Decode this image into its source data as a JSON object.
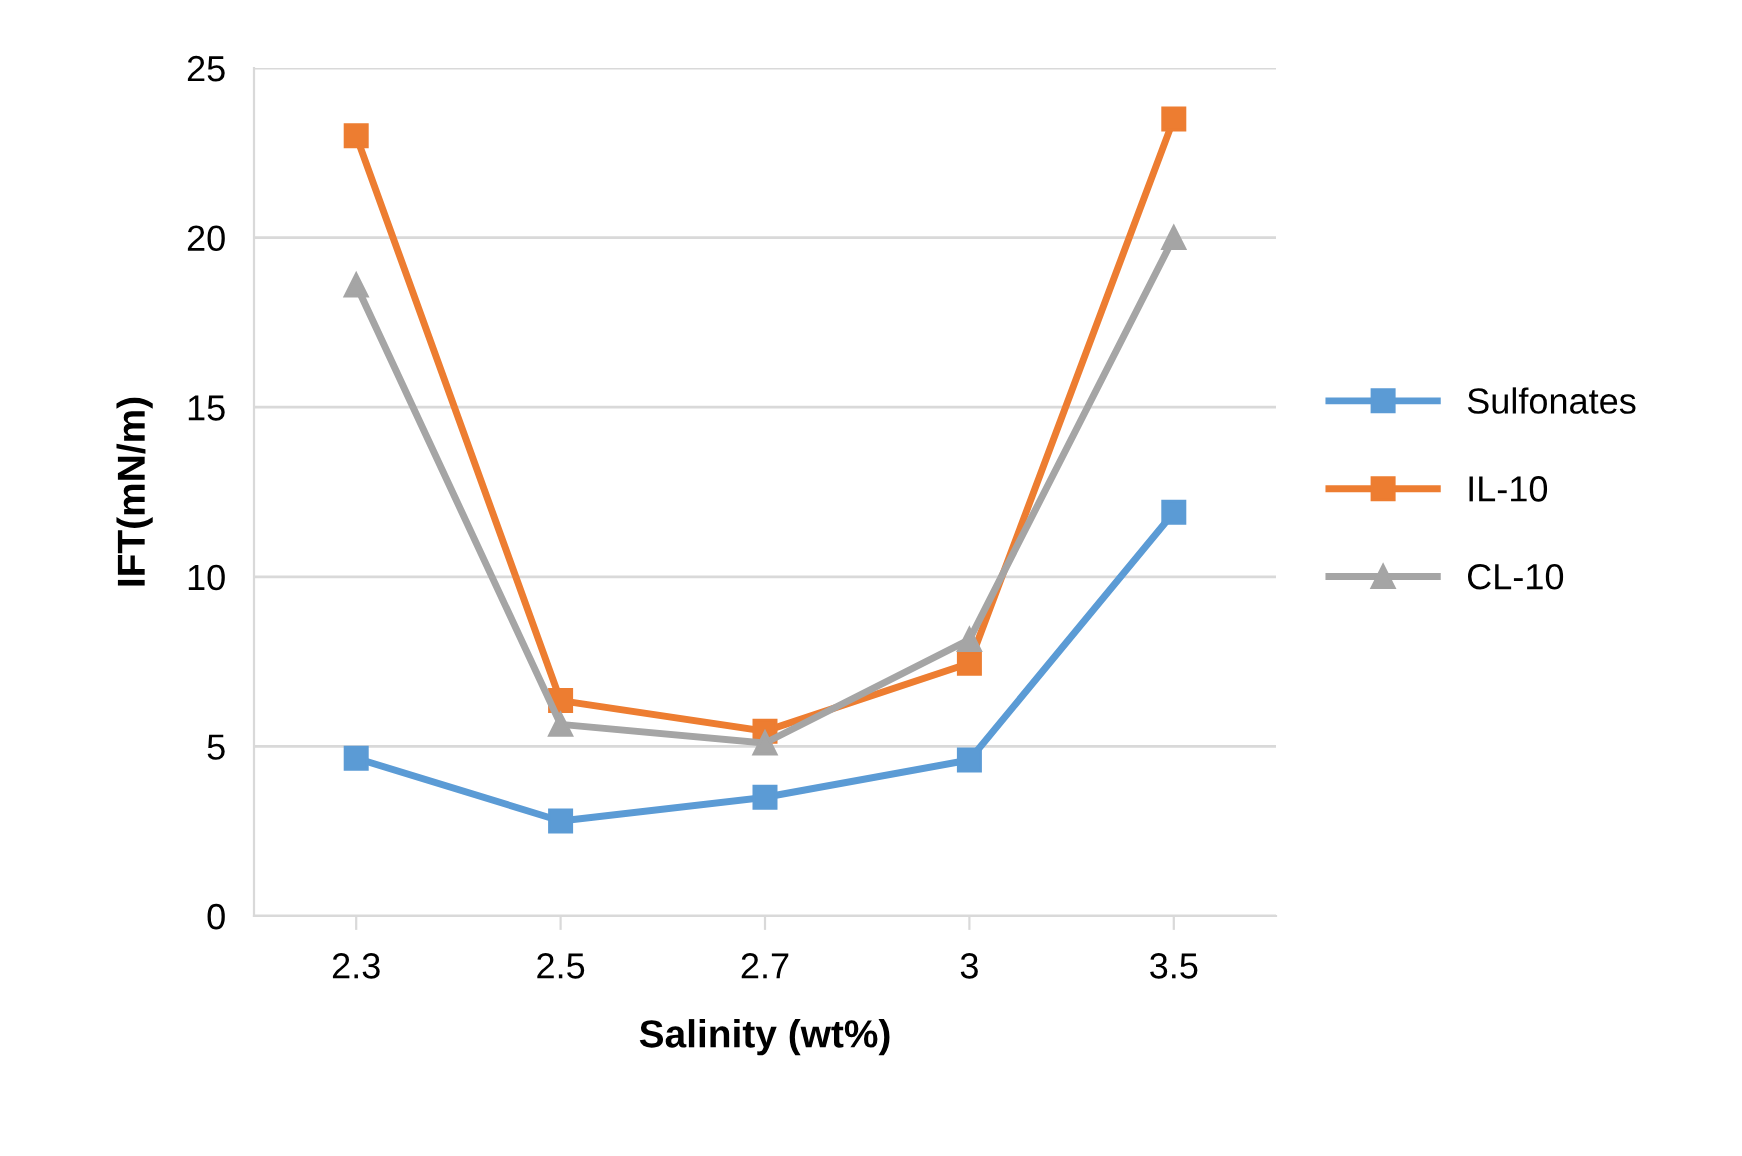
{
  "chart_data": {
    "type": "line",
    "xlabel": "Salinity (wt%)",
    "ylabel": "IFT(mN/m)",
    "categories": [
      "2.3",
      "2.5",
      "2.7",
      "3",
      "3.5"
    ],
    "series": [
      {
        "name": "Sulfonates",
        "color": "#5b9bd5",
        "marker": "square",
        "values": [
          4.65,
          2.8,
          3.5,
          4.6,
          11.9
        ]
      },
      {
        "name": "IL-10",
        "color": "#ed7d31",
        "marker": "square",
        "values": [
          23.0,
          6.35,
          5.45,
          7.45,
          23.5
        ]
      },
      {
        "name": "CL-10",
        "color": "#a5a5a5",
        "marker": "triangle",
        "values": [
          18.6,
          5.65,
          5.1,
          8.15,
          20.0
        ]
      }
    ],
    "ylim": [
      0,
      25
    ],
    "yticks": [
      0,
      5,
      10,
      15,
      20,
      25
    ],
    "grid": "y",
    "legend": "right"
  }
}
